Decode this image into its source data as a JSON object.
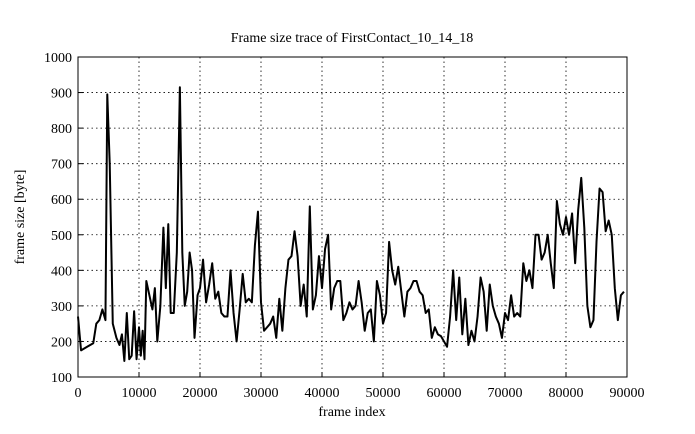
{
  "chart_data": {
    "type": "line",
    "title": "Frame size trace of FirstContact_10_14_18",
    "x_label": "frame index",
    "y_label": "frame size [byte]",
    "color": "#000000",
    "grid": true,
    "xlim": [
      0,
      90000
    ],
    "ylim": [
      100,
      1000
    ],
    "xticks": [
      0,
      10000,
      20000,
      30000,
      40000,
      50000,
      60000,
      70000,
      80000,
      90000
    ],
    "yticks": [
      100,
      200,
      300,
      400,
      500,
      600,
      700,
      800,
      900,
      1000
    ],
    "x": [
      0,
      500,
      1500,
      2500,
      3000,
      3500,
      4000,
      4500,
      4800,
      5200,
      5700,
      6300,
      6800,
      7200,
      7600,
      8000,
      8400,
      8800,
      9200,
      9600,
      10000,
      10300,
      10600,
      10900,
      11200,
      11700,
      12200,
      12600,
      13000,
      13500,
      14000,
      14400,
      14800,
      15200,
      15700,
      16200,
      16700,
      17100,
      17500,
      17900,
      18300,
      18700,
      19100,
      19600,
      20000,
      20500,
      21000,
      21500,
      22000,
      22500,
      23000,
      23500,
      24000,
      24500,
      25000,
      25500,
      26000,
      26500,
      27000,
      27500,
      28000,
      28500,
      29000,
      29500,
      30000,
      30500,
      31000,
      31500,
      32000,
      32500,
      33000,
      33500,
      34000,
      34500,
      35000,
      35500,
      36000,
      36500,
      37000,
      37500,
      38000,
      38500,
      39000,
      39500,
      40000,
      40500,
      41000,
      41500,
      42000,
      42500,
      43000,
      43500,
      44000,
      44500,
      45000,
      45500,
      46000,
      46500,
      47000,
      47500,
      48000,
      48500,
      49000,
      49500,
      50000,
      50500,
      51000,
      51500,
      52000,
      52500,
      53000,
      53500,
      54000,
      54500,
      55000,
      55500,
      56000,
      56500,
      57000,
      57500,
      58000,
      58500,
      59000,
      59500,
      60000,
      60500,
      61000,
      61500,
      62000,
      62500,
      63000,
      63500,
      64000,
      64500,
      65000,
      65500,
      66000,
      66500,
      67000,
      67500,
      68000,
      68500,
      69000,
      69500,
      70000,
      70500,
      71000,
      71500,
      72000,
      72500,
      73000,
      73500,
      74000,
      74500,
      75000,
      75500,
      76000,
      76500,
      77000,
      77500,
      78000,
      78500,
      79000,
      79500,
      80000,
      80500,
      81000,
      81500,
      82000,
      82500,
      83000,
      83500,
      84000,
      84500,
      85000,
      85500,
      86000,
      86500,
      87000,
      87500,
      88000,
      88500,
      89000,
      89500
    ],
    "values": [
      270,
      175,
      185,
      195,
      250,
      260,
      290,
      260,
      895,
      700,
      250,
      210,
      190,
      220,
      145,
      280,
      150,
      160,
      285,
      150,
      240,
      160,
      230,
      150,
      370,
      330,
      290,
      350,
      200,
      300,
      520,
      350,
      530,
      280,
      280,
      450,
      915,
      450,
      300,
      340,
      450,
      400,
      210,
      330,
      350,
      430,
      310,
      360,
      420,
      320,
      340,
      280,
      270,
      270,
      400,
      280,
      200,
      290,
      390,
      310,
      320,
      310,
      470,
      565,
      310,
      230,
      240,
      250,
      270,
      210,
      320,
      230,
      350,
      430,
      440,
      510,
      440,
      300,
      360,
      270,
      580,
      290,
      330,
      440,
      350,
      460,
      500,
      290,
      350,
      370,
      370,
      260,
      280,
      310,
      290,
      300,
      370,
      310,
      230,
      280,
      290,
      200,
      370,
      330,
      250,
      280,
      480,
      400,
      360,
      410,
      340,
      270,
      340,
      350,
      370,
      370,
      340,
      330,
      280,
      290,
      210,
      240,
      220,
      215,
      200,
      185,
      270,
      400,
      260,
      380,
      220,
      320,
      190,
      230,
      200,
      270,
      380,
      340,
      230,
      360,
      300,
      270,
      250,
      210,
      280,
      260,
      330,
      270,
      280,
      270,
      420,
      370,
      400,
      350,
      500,
      500,
      430,
      450,
      500,
      420,
      350,
      595,
      530,
      500,
      550,
      500,
      560,
      420,
      570,
      660,
      520,
      300,
      240,
      260,
      480,
      630,
      620,
      510,
      540,
      500,
      350,
      260,
      330,
      340
    ]
  }
}
